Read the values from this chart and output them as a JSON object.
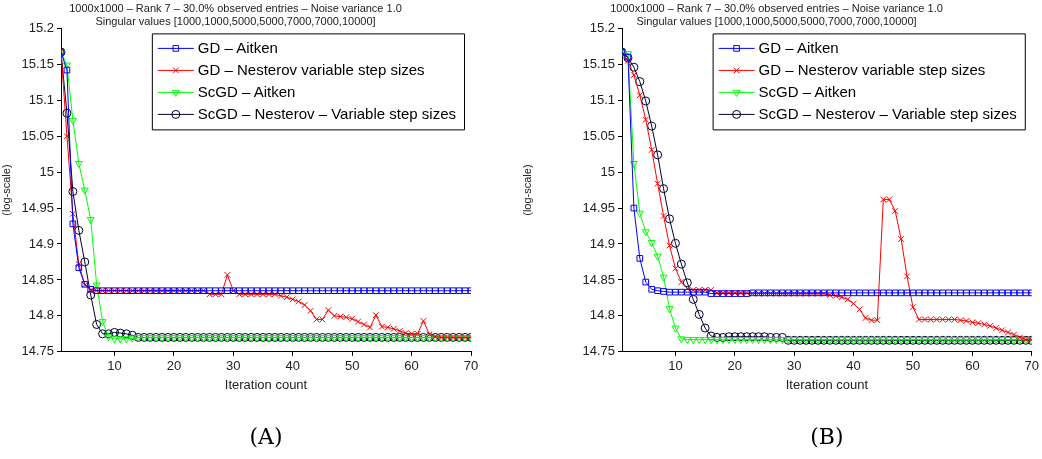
{
  "chart_data": [
    {
      "type": "line",
      "title": "1000x1000 – Rank 7 – 30.0% observed entries – Noise variance 1.0",
      "subtitle": "Singular values [1000,1000,5000,5000,7000,7000,10000]",
      "xlabel": "Iteration count",
      "ylabel": "(log-scale)",
      "annotations": [
        "(A)"
      ],
      "x": [
        1,
        2,
        3,
        4,
        5,
        6,
        7,
        8,
        9,
        10,
        11,
        12,
        13,
        14,
        15,
        16,
        17,
        18,
        19,
        20,
        21,
        22,
        23,
        24,
        25,
        26,
        27,
        28,
        29,
        30,
        31,
        32,
        33,
        34,
        35,
        36,
        37,
        38,
        39,
        40,
        41,
        42,
        43,
        44,
        45,
        46,
        47,
        48,
        49,
        50,
        51,
        52,
        53,
        54,
        55,
        56,
        57,
        58,
        59,
        60,
        61,
        62,
        63,
        64,
        65,
        66,
        67,
        68,
        69,
        70
      ],
      "xlim": [
        1,
        70
      ],
      "xticks": [
        10,
        20,
        30,
        40,
        50,
        60,
        70
      ],
      "ylim": [
        14.75,
        15.2
      ],
      "yticks": [
        14.75,
        14.8,
        14.85,
        14.9,
        14.95,
        15,
        15.05,
        15.1,
        15.15,
        15.2
      ],
      "grid": false,
      "legend": "top right",
      "line_style": "solid",
      "series": [
        {
          "name": "GD – Aitken",
          "color": "#0000ff",
          "marker": "square",
          "values": [
            15.167,
            15.142,
            14.928,
            14.867,
            14.844,
            14.837,
            14.835,
            14.835,
            14.835,
            14.835,
            14.835,
            14.835,
            14.835,
            14.835,
            14.835,
            14.835,
            14.835,
            14.835,
            14.835,
            14.835,
            14.835,
            14.835,
            14.835,
            14.835,
            14.835,
            14.835,
            14.835,
            14.835,
            14.835,
            14.835,
            14.835,
            14.835,
            14.835,
            14.835,
            14.835,
            14.835,
            14.835,
            14.835,
            14.835,
            14.835,
            14.835,
            14.835,
            14.835,
            14.835,
            14.835,
            14.835,
            14.835,
            14.835,
            14.835,
            14.835,
            14.835,
            14.835,
            14.835,
            14.835,
            14.835,
            14.835,
            14.835,
            14.835,
            14.835,
            14.835,
            14.835,
            14.835,
            14.835,
            14.835,
            14.835,
            14.835,
            14.835,
            14.835,
            14.835,
            14.835
          ]
        },
        {
          "name": "GD – Nesterov variable step sizes",
          "color": "#ff0000",
          "marker": "cross",
          "values": [
            15.167,
            15.05,
            14.942,
            14.872,
            14.843,
            14.836,
            14.835,
            14.835,
            14.835,
            14.835,
            14.835,
            14.835,
            14.835,
            14.835,
            14.835,
            14.835,
            14.835,
            14.835,
            14.835,
            14.835,
            14.835,
            14.835,
            14.835,
            14.835,
            14.835,
            14.83,
            14.83,
            14.83,
            14.857,
            14.835,
            14.83,
            14.83,
            14.83,
            14.83,
            14.83,
            14.83,
            14.83,
            14.828,
            14.826,
            14.823,
            14.82,
            14.815,
            14.807,
            14.795,
            14.795,
            14.808,
            14.8,
            14.799,
            14.798,
            14.796,
            14.792,
            14.788,
            14.784,
            14.801,
            14.785,
            14.784,
            14.782,
            14.779,
            14.776,
            14.775,
            14.775,
            14.793,
            14.774,
            14.771,
            14.77,
            14.77,
            14.77,
            14.77,
            14.77,
            14.77
          ]
        },
        {
          "name": "ScGD – Aitken",
          "color": "#00ff00",
          "marker": "triangle",
          "values": [
            15.167,
            15.149,
            15.072,
            15.012,
            14.975,
            14.934,
            14.843,
            14.792,
            14.771,
            14.768,
            14.768,
            14.768,
            14.769,
            14.77,
            14.77,
            14.77,
            14.77,
            14.77,
            14.77,
            14.77,
            14.77,
            14.77,
            14.77,
            14.77,
            14.77,
            14.77,
            14.77,
            14.77,
            14.77,
            14.77,
            14.77,
            14.77,
            14.77,
            14.77,
            14.77,
            14.77,
            14.77,
            14.77,
            14.77,
            14.77,
            14.77,
            14.77,
            14.77,
            14.77,
            14.77,
            14.77,
            14.77,
            14.77,
            14.77,
            14.77,
            14.77,
            14.77,
            14.77,
            14.77,
            14.77,
            14.77,
            14.77,
            14.77,
            14.77,
            14.77,
            14.77,
            14.77,
            14.77,
            14.77,
            14.77,
            14.77,
            14.77,
            14.77,
            14.77,
            14.77
          ]
        },
        {
          "name": "ScGD – Nesterov – Variable step sizes",
          "color": "#000033",
          "marker": "circle",
          "values": [
            15.167,
            15.082,
            14.973,
            14.919,
            14.875,
            14.829,
            14.788,
            14.775,
            14.775,
            14.777,
            14.776,
            14.775,
            14.773,
            14.77,
            14.77,
            14.77,
            14.77,
            14.77,
            14.77,
            14.77,
            14.77,
            14.77,
            14.77,
            14.77,
            14.77,
            14.77,
            14.77,
            14.77,
            14.77,
            14.77,
            14.77,
            14.77,
            14.77,
            14.77,
            14.77,
            14.77,
            14.77,
            14.77,
            14.77,
            14.77,
            14.77,
            14.77,
            14.77,
            14.77,
            14.77,
            14.77,
            14.77,
            14.77,
            14.77,
            14.77,
            14.77,
            14.77,
            14.77,
            14.77,
            14.77,
            14.77,
            14.77,
            14.77,
            14.77,
            14.77,
            14.77,
            14.77,
            14.77,
            14.77,
            14.77,
            14.77,
            14.77,
            14.77,
            14.77,
            14.77
          ]
        }
      ]
    },
    {
      "type": "line",
      "title": "1000x1000 – Rank 7 – 30.0% observed entries – Noise variance 1.0",
      "subtitle": "Singular values [1000,1000,5000,5000,7000,7000,10000]",
      "xlabel": "Iteration count",
      "ylabel": "(log-scale)",
      "annotations": [
        "(B)"
      ],
      "x": [
        1,
        2,
        3,
        4,
        5,
        6,
        7,
        8,
        9,
        10,
        11,
        12,
        13,
        14,
        15,
        16,
        17,
        18,
        19,
        20,
        21,
        22,
        23,
        24,
        25,
        26,
        27,
        28,
        29,
        30,
        31,
        32,
        33,
        34,
        35,
        36,
        37,
        38,
        39,
        40,
        41,
        42,
        43,
        44,
        45,
        46,
        47,
        48,
        49,
        50,
        51,
        52,
        53,
        54,
        55,
        56,
        57,
        58,
        59,
        60,
        61,
        62,
        63,
        64,
        65,
        66,
        67,
        68,
        69,
        70
      ],
      "xlim": [
        1,
        70
      ],
      "xticks": [
        10,
        20,
        30,
        40,
        50,
        60,
        70
      ],
      "ylim": [
        14.75,
        15.2
      ],
      "yticks": [
        14.75,
        14.8,
        14.85,
        14.9,
        14.95,
        15,
        15.05,
        15.1,
        15.15,
        15.2
      ],
      "grid": false,
      "legend": "top right",
      "line_style": "solid",
      "series": [
        {
          "name": "GD – Aitken",
          "color": "#0000ff",
          "marker": "square",
          "values": [
            15.167,
            15.16,
            14.95,
            14.88,
            14.847,
            14.837,
            14.835,
            14.834,
            14.833,
            14.833,
            14.833,
            14.833,
            14.833,
            14.833,
            14.833,
            14.831,
            14.831,
            14.831,
            14.831,
            14.831,
            14.831,
            14.831,
            14.832,
            14.832,
            14.832,
            14.832,
            14.832,
            14.832,
            14.832,
            14.832,
            14.832,
            14.832,
            14.832,
            14.832,
            14.832,
            14.832,
            14.832,
            14.832,
            14.832,
            14.832,
            14.832,
            14.832,
            14.832,
            14.832,
            14.832,
            14.832,
            14.832,
            14.832,
            14.832,
            14.832,
            14.832,
            14.832,
            14.832,
            14.832,
            14.832,
            14.832,
            14.832,
            14.832,
            14.832,
            14.832,
            14.832,
            14.832,
            14.832,
            14.832,
            14.832,
            14.832,
            14.832,
            14.832,
            14.832,
            14.832
          ]
        },
        {
          "name": "GD – Nesterov variable step sizes",
          "color": "#ff0000",
          "marker": "cross",
          "values": [
            15.167,
            15.155,
            15.135,
            15.107,
            15.073,
            15.031,
            14.984,
            14.939,
            14.898,
            14.866,
            14.847,
            14.838,
            14.836,
            14.836,
            14.836,
            14.836,
            14.832,
            14.832,
            14.832,
            14.832,
            14.832,
            14.832,
            14.831,
            14.831,
            14.831,
            14.831,
            14.831,
            14.831,
            14.831,
            14.831,
            14.831,
            14.831,
            14.831,
            14.831,
            14.831,
            14.829,
            14.828,
            14.826,
            14.823,
            14.817,
            14.809,
            14.797,
            14.794,
            14.794,
            14.962,
            14.962,
            14.946,
            14.907,
            14.855,
            14.812,
            14.795,
            14.795,
            14.795,
            14.795,
            14.795,
            14.795,
            14.795,
            14.794,
            14.793,
            14.791,
            14.79,
            14.788,
            14.786,
            14.783,
            14.78,
            14.777,
            14.774,
            14.77,
            14.767,
            14.767
          ]
        },
        {
          "name": "ScGD – Aitken",
          "color": "#00ff00",
          "marker": "triangle",
          "values": [
            15.167,
            15.165,
            15.012,
            14.943,
            14.917,
            14.902,
            14.883,
            14.854,
            14.81,
            14.783,
            14.768,
            14.767,
            14.767,
            14.767,
            14.767,
            14.767,
            14.767,
            14.767,
            14.767,
            14.767,
            14.767,
            14.767,
            14.767,
            14.767,
            14.767,
            14.767,
            14.767,
            14.767,
            14.767,
            14.767,
            14.767,
            14.767,
            14.767,
            14.767,
            14.767,
            14.767,
            14.767,
            14.767,
            14.767,
            14.767,
            14.767,
            14.767,
            14.767,
            14.767,
            14.767,
            14.767,
            14.767,
            14.767,
            14.767,
            14.767,
            14.767,
            14.767,
            14.767,
            14.767,
            14.767,
            14.767,
            14.767,
            14.767,
            14.767,
            14.767,
            14.767,
            14.767,
            14.767,
            14.767,
            14.767,
            14.767,
            14.767,
            14.767,
            14.767,
            14.767
          ]
        },
        {
          "name": "ScGD – Nesterov – Variable step sizes",
          "color": "#000033",
          "marker": "circle",
          "values": [
            15.167,
            15.159,
            15.146,
            15.126,
            15.099,
            15.064,
            15.024,
            14.977,
            14.935,
            14.901,
            14.872,
            14.846,
            14.823,
            14.802,
            14.783,
            14.772,
            14.77,
            14.77,
            14.771,
            14.771,
            14.771,
            14.771,
            14.771,
            14.771,
            14.771,
            14.77,
            14.77,
            14.77,
            14.766,
            14.766,
            14.766,
            14.766,
            14.766,
            14.766,
            14.766,
            14.766,
            14.766,
            14.766,
            14.766,
            14.766,
            14.766,
            14.766,
            14.766,
            14.766,
            14.766,
            14.766,
            14.766,
            14.766,
            14.766,
            14.766,
            14.766,
            14.766,
            14.766,
            14.766,
            14.766,
            14.766,
            14.766,
            14.766,
            14.766,
            14.766,
            14.766,
            14.766,
            14.766,
            14.766,
            14.766,
            14.766,
            14.766,
            14.766,
            14.766,
            14.766
          ]
        }
      ]
    }
  ]
}
